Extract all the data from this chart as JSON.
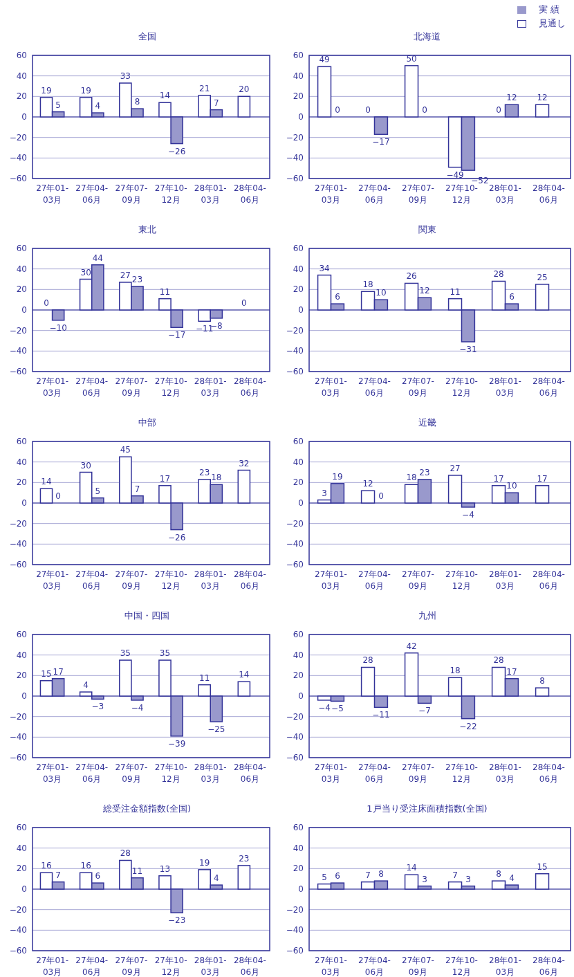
{
  "chart_data": [
    {
      "type": "bar",
      "title": "全国",
      "ref_lines": [
        {
          "axis": "y",
          "value": 0,
          "color": "#333399"
        }
      ],
      "categories": [
        "27年01-03月",
        "27年04-06月",
        "27年07-09月",
        "27年10-12月",
        "28年01-03月",
        "28年04-06月"
      ],
      "ylim": [
        -60,
        60
      ],
      "yticks": [
        60,
        40,
        20,
        0,
        {
          "value": -20,
          "label": "−20"
        },
        {
          "value": -40,
          "label": "−40"
        },
        {
          "value": -60,
          "label": "−60"
        }
      ],
      "grid": "y",
      "data_labels": true,
      "series": [
        {
          "color": "#ffffff",
          "values": [
            19,
            19,
            33,
            14,
            21,
            20
          ]
        },
        {
          "color": "#9999cc",
          "values": [
            5,
            4,
            8,
            -26,
            7,
            null
          ]
        }
      ]
    },
    {
      "type": "bar",
      "title": "北海道",
      "ref_lines": [
        {
          "axis": "y",
          "value": 0,
          "color": "#333399"
        }
      ],
      "categories": [
        "27年01-03月",
        "27年04-06月",
        "27年07-09月",
        "27年10-12月",
        "28年01-03月",
        "28年04-06月"
      ],
      "ylim": [
        -60,
        60
      ],
      "yticks": [
        60,
        40,
        20,
        0,
        {
          "value": -20,
          "label": "−20"
        },
        {
          "value": -40,
          "label": "−40"
        },
        {
          "value": -60,
          "label": "−60"
        }
      ],
      "grid": "y",
      "data_labels": true,
      "legend": "top right",
      "series": [
        {
          "name": "見通し",
          "color": "#ffffff",
          "values": [
            49,
            0,
            50,
            -49,
            0,
            12
          ]
        },
        {
          "name": "実 績",
          "color": "#9999cc",
          "values": [
            0,
            -17,
            0,
            -52,
            12,
            null
          ]
        }
      ]
    },
    {
      "type": "bar",
      "title": "東北",
      "ref_lines": [
        {
          "axis": "y",
          "value": 0,
          "color": "#333399"
        }
      ],
      "categories": [
        "27年01-03月",
        "27年04-06月",
        "27年07-09月",
        "27年10-12月",
        "28年01-03月",
        "28年04-06月"
      ],
      "ylim": [
        -60,
        60
      ],
      "yticks": [
        60,
        40,
        20,
        0,
        {
          "value": -20,
          "label": "−20"
        },
        {
          "value": -40,
          "label": "−40"
        },
        {
          "value": -60,
          "label": "−60"
        }
      ],
      "grid": "y",
      "data_labels": true,
      "series": [
        {
          "color": "#ffffff",
          "values": [
            0,
            30,
            27,
            11,
            -11,
            0
          ]
        },
        {
          "color": "#9999cc",
          "values": [
            -10,
            44,
            23,
            -17,
            -8,
            null
          ]
        }
      ]
    },
    {
      "type": "bar",
      "title": "関東",
      "ref_lines": [
        {
          "axis": "y",
          "value": 0,
          "color": "#333399"
        }
      ],
      "categories": [
        "27年01-03月",
        "27年04-06月",
        "27年07-09月",
        "27年10-12月",
        "28年01-03月",
        "28年04-06月"
      ],
      "ylim": [
        -60,
        60
      ],
      "yticks": [
        60,
        40,
        20,
        0,
        {
          "value": -20,
          "label": "−20"
        },
        {
          "value": -40,
          "label": "−40"
        },
        {
          "value": -60,
          "label": "−60"
        }
      ],
      "grid": "y",
      "data_labels": true,
      "series": [
        {
          "color": "#ffffff",
          "values": [
            34,
            18,
            26,
            11,
            28,
            25
          ]
        },
        {
          "color": "#9999cc",
          "values": [
            6,
            10,
            12,
            -31,
            6,
            null
          ]
        }
      ]
    },
    {
      "type": "bar",
      "title": "中部",
      "ref_lines": [
        {
          "axis": "y",
          "value": 0,
          "color": "#333399"
        }
      ],
      "categories": [
        "27年01-03月",
        "27年04-06月",
        "27年07-09月",
        "27年10-12月",
        "28年01-03月",
        "28年04-06月"
      ],
      "ylim": [
        -60,
        60
      ],
      "yticks": [
        60,
        40,
        20,
        0,
        {
          "value": -20,
          "label": "−20"
        },
        {
          "value": -40,
          "label": "−40"
        },
        {
          "value": -60,
          "label": "−60"
        }
      ],
      "grid": "y",
      "data_labels": true,
      "series": [
        {
          "color": "#ffffff",
          "values": [
            14,
            30,
            45,
            17,
            23,
            32
          ]
        },
        {
          "color": "#9999cc",
          "values": [
            0,
            5,
            7,
            -26,
            18,
            null
          ]
        }
      ]
    },
    {
      "type": "bar",
      "title": "近畿",
      "ref_lines": [
        {
          "axis": "y",
          "value": 0,
          "color": "#333399"
        }
      ],
      "categories": [
        "27年01-03月",
        "27年04-06月",
        "27年07-09月",
        "27年10-12月",
        "28年01-03月",
        "28年04-06月"
      ],
      "ylim": [
        -60,
        60
      ],
      "yticks": [
        60,
        40,
        20,
        0,
        {
          "value": -20,
          "label": "−20"
        },
        {
          "value": -40,
          "label": "−40"
        },
        {
          "value": -60,
          "label": "−60"
        }
      ],
      "grid": "y",
      "data_labels": true,
      "series": [
        {
          "color": "#ffffff",
          "values": [
            3,
            12,
            18,
            27,
            17,
            17
          ]
        },
        {
          "color": "#9999cc",
          "values": [
            19,
            0,
            23,
            -4,
            10,
            null
          ]
        }
      ]
    },
    {
      "type": "bar",
      "title": "中国・四国",
      "ref_lines": [
        {
          "axis": "y",
          "value": 0,
          "color": "#333399"
        }
      ],
      "categories": [
        "27年01-03月",
        "27年04-06月",
        "27年07-09月",
        "27年10-12月",
        "28年01-03月",
        "28年04-06月"
      ],
      "ylim": [
        -60,
        60
      ],
      "yticks": [
        60,
        40,
        20,
        0,
        {
          "value": -20,
          "label": "−20"
        },
        {
          "value": -40,
          "label": "−40"
        },
        {
          "value": -60,
          "label": "−60"
        }
      ],
      "grid": "y",
      "data_labels": true,
      "series": [
        {
          "color": "#ffffff",
          "values": [
            15,
            4,
            35,
            35,
            11,
            14
          ]
        },
        {
          "color": "#9999cc",
          "values": [
            17,
            -3,
            -4,
            -39,
            -25,
            null
          ]
        }
      ]
    },
    {
      "type": "bar",
      "title": "九州",
      "ref_lines": [
        {
          "axis": "y",
          "value": 0,
          "color": "#333399"
        }
      ],
      "categories": [
        "27年01-03月",
        "27年04-06月",
        "27年07-09月",
        "27年10-12月",
        "28年01-03月",
        "28年04-06月"
      ],
      "ylim": [
        -60,
        60
      ],
      "yticks": [
        60,
        40,
        20,
        0,
        {
          "value": -20,
          "label": "−20"
        },
        {
          "value": -40,
          "label": "−40"
        },
        {
          "value": -60,
          "label": "−60"
        }
      ],
      "grid": "y",
      "data_labels": true,
      "series": [
        {
          "color": "#ffffff",
          "values": [
            -4,
            28,
            42,
            18,
            28,
            8
          ]
        },
        {
          "color": "#9999cc",
          "values": [
            -5,
            -11,
            -7,
            -22,
            17,
            null
          ]
        }
      ]
    },
    {
      "type": "bar",
      "title": "総受注金額指数(全国)",
      "ref_lines": [
        {
          "axis": "y",
          "value": 0,
          "color": "#333399"
        }
      ],
      "categories": [
        "27年01-03月",
        "27年04-06月",
        "27年07-09月",
        "27年10-12月",
        "28年01-03月",
        "28年04-06月"
      ],
      "ylim": [
        -60,
        60
      ],
      "yticks": [
        60,
        40,
        20,
        0,
        {
          "value": -20,
          "label": "−20"
        },
        {
          "value": -40,
          "label": "−40"
        },
        {
          "value": -60,
          "label": "−60"
        }
      ],
      "grid": "y",
      "data_labels": true,
      "series": [
        {
          "color": "#ffffff",
          "values": [
            16,
            16,
            28,
            13,
            19,
            23
          ]
        },
        {
          "color": "#9999cc",
          "values": [
            7,
            6,
            11,
            -23,
            4,
            null
          ]
        }
      ]
    },
    {
      "type": "bar",
      "title": "1戸当り受注床面積指数(全国)",
      "ref_lines": [
        {
          "axis": "y",
          "value": 0,
          "color": "#333399"
        }
      ],
      "categories": [
        "27年01-03月",
        "27年04-06月",
        "27年07-09月",
        "27年10-12月",
        "28年01-03月",
        "28年04-06月"
      ],
      "ylim": [
        -60,
        60
      ],
      "yticks": [
        60,
        40,
        20,
        0,
        {
          "value": -20,
          "label": "−20"
        },
        {
          "value": -40,
          "label": "−40"
        },
        {
          "value": -60,
          "label": "−60"
        }
      ],
      "grid": "y",
      "data_labels": true,
      "series": [
        {
          "color": "#ffffff",
          "values": [
            5,
            7,
            14,
            7,
            8,
            15
          ]
        },
        {
          "color": "#9999cc",
          "values": [
            6,
            8,
            3,
            3,
            4,
            null
          ]
        }
      ]
    }
  ]
}
